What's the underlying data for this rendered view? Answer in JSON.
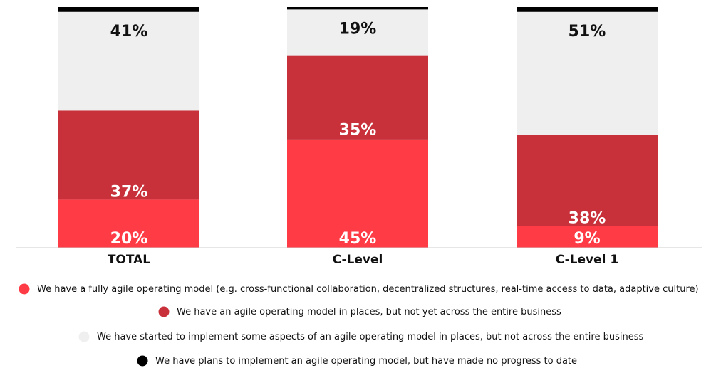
{
  "chart_data": {
    "type": "bar",
    "stacked": true,
    "percent": true,
    "categories": [
      "TOTAL",
      "C-Level",
      "C-Level 1"
    ],
    "series": [
      {
        "name": "We have a fully agile operating model (e.g. cross-functional collaboration, decentralized structures, real-time access to data, adaptive culture)",
        "color": "#ff3b46",
        "values": [
          20,
          45,
          9
        ],
        "labels": [
          "20%",
          "45%",
          "9%"
        ]
      },
      {
        "name": "We have an agile operating model in places, but not yet across the entire business",
        "color": "#c8303a",
        "values": [
          37,
          35,
          38
        ],
        "labels": [
          "37%",
          "35%",
          "38%"
        ]
      },
      {
        "name": "We have started to implement some aspects of an agile operating model in places, but not across the entire business",
        "color": "#efefef",
        "values": [
          41,
          19,
          51
        ],
        "labels": [
          "41%",
          "19%",
          "51%"
        ]
      },
      {
        "name": "We have plans to implement an agile operating model, but have made no progress to date",
        "color": "#000000",
        "values": [
          2,
          1,
          2
        ],
        "labels": [
          "",
          "",
          ""
        ]
      }
    ],
    "ylim": [
      0,
      100
    ],
    "grid": false,
    "legend_position": "bottom"
  }
}
